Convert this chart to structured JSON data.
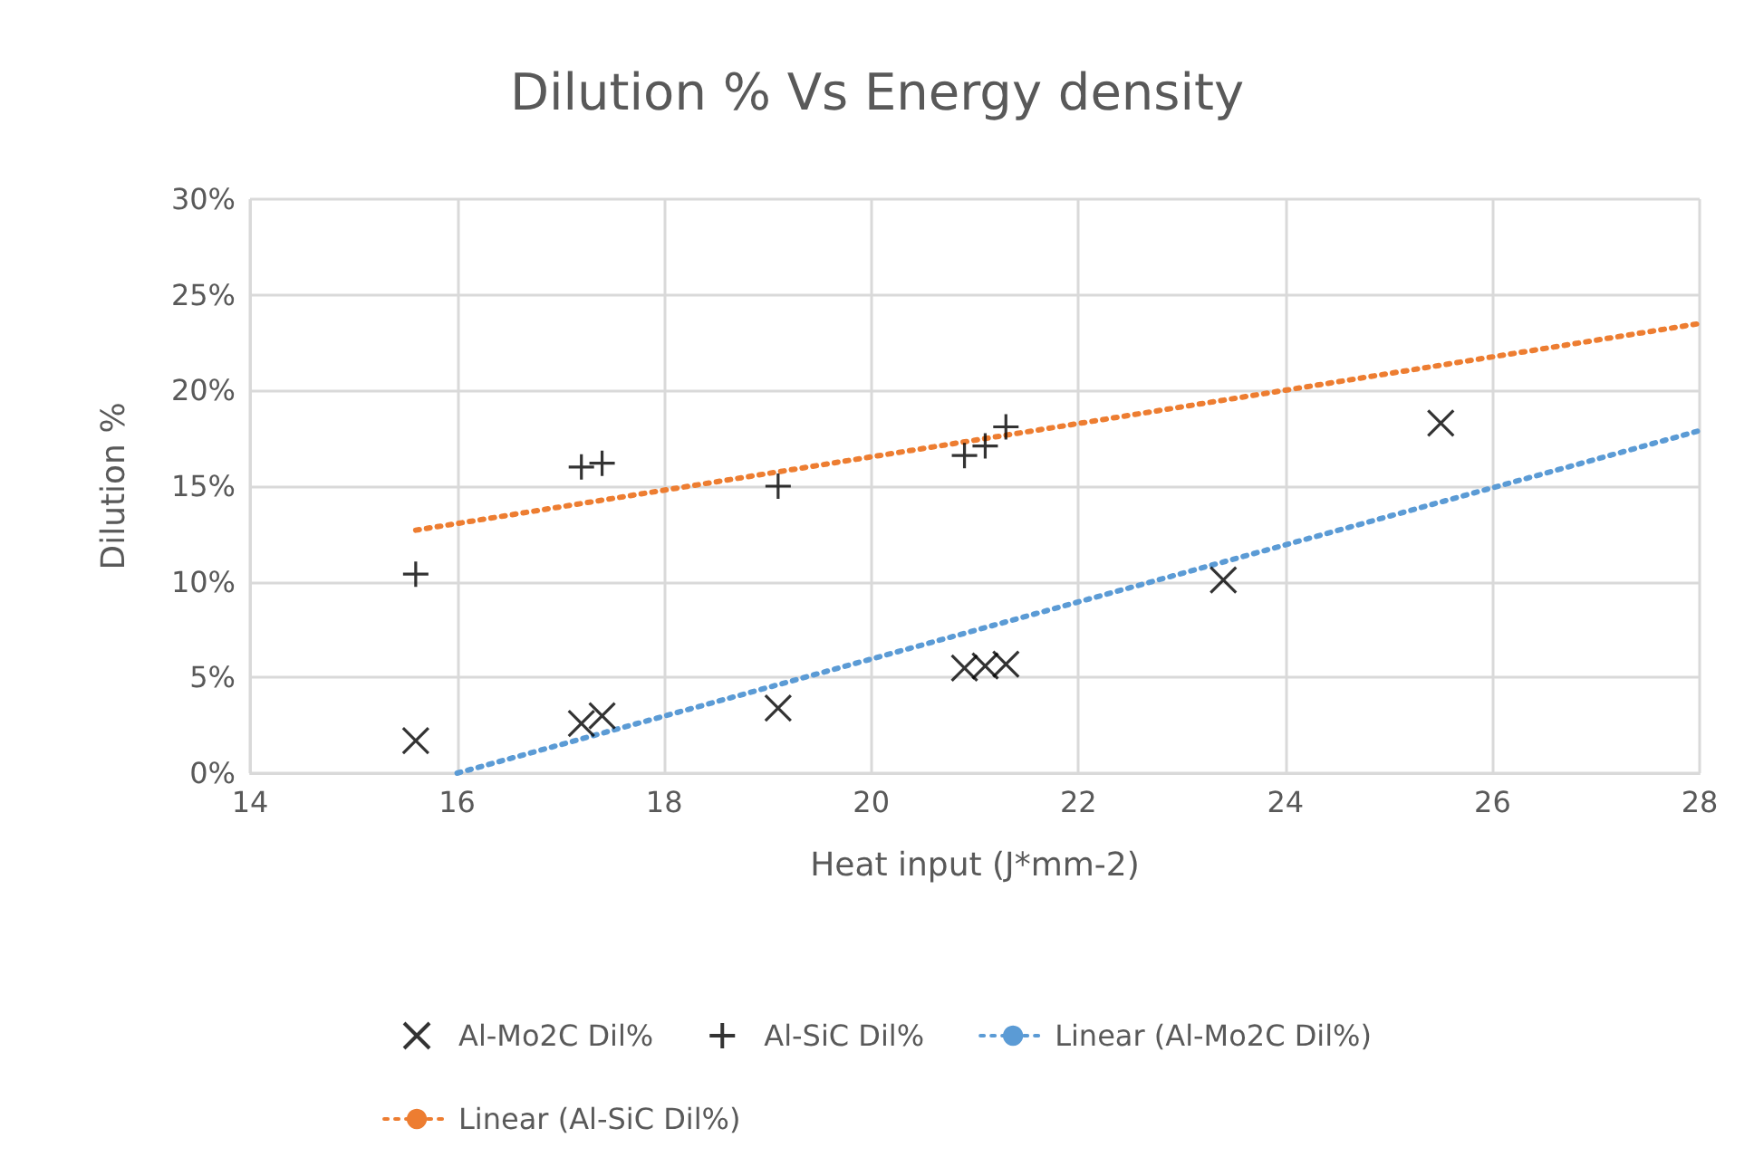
{
  "chart_data": {
    "type": "scatter",
    "title": "Dilution % Vs Energy density",
    "xlabel": "Heat input (J*mm-2)",
    "ylabel": "Dilution %",
    "series": [
      {
        "name": "Al-Mo2C Dil%",
        "color": "#000000",
        "marker": "x",
        "x": [
          15.6,
          17.2,
          17.4,
          19.1,
          20.9,
          21.1,
          21.3,
          23.4,
          25.5
        ],
        "values": [
          1.7,
          2.6,
          3.0,
          3.4,
          5.5,
          5.6,
          5.7,
          10.1,
          18.3
        ]
      },
      {
        "name": "Al-SiC Dil%",
        "color": "#000000",
        "marker": "cross",
        "x": [
          15.6,
          17.2,
          17.4,
          19.1,
          20.9,
          21.1,
          21.3
        ],
        "values": [
          10.4,
          16.0,
          16.2,
          15.0,
          16.6,
          17.1,
          18.1
        ]
      },
      {
        "name": "Linear (Al-Mo2C Dil%)",
        "type": "line",
        "color": "#5b9bd5",
        "line_style": "dotted",
        "marker": "none",
        "x": [
          16,
          28
        ],
        "values": [
          0,
          17.9
        ]
      },
      {
        "name": "Linear (Al-SiC Dil%)",
        "type": "line",
        "color": "#ed7d31",
        "line_style": "dotted",
        "marker": "none",
        "x": [
          15.6,
          28
        ],
        "values": [
          12.7,
          23.5
        ]
      }
    ],
    "xlim": [
      14,
      28
    ],
    "xticks": [
      14,
      16,
      18,
      20,
      22,
      24,
      26,
      28
    ],
    "ylim": [
      0,
      30
    ],
    "yticks": [
      {
        "value": 0,
        "label": "0%"
      },
      {
        "value": 5,
        "label": "5%"
      },
      {
        "value": 10,
        "label": "10%"
      },
      {
        "value": 15,
        "label": "15%"
      },
      {
        "value": 20,
        "label": "20%"
      },
      {
        "value": 25,
        "label": "25%"
      },
      {
        "value": 30,
        "label": "30%"
      }
    ],
    "grid": true,
    "legend": "bottom"
  }
}
